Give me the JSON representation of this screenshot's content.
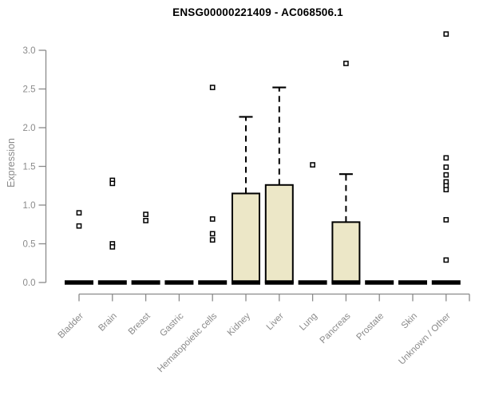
{
  "window": {
    "background": "#ffffff"
  },
  "chart_data": {
    "type": "box",
    "title": "ENSG00000221409 - AC068506.1",
    "xlabel": "",
    "ylabel": "Expression",
    "ylim": [
      0.0,
      3.0
    ],
    "yticks": [
      0.0,
      0.5,
      1.0,
      1.5,
      2.0,
      2.5,
      3.0
    ],
    "grid": false,
    "legend": "none",
    "categories": [
      "Bladder",
      "Brain",
      "Breast",
      "Gastric",
      "Hematopoietic cells",
      "Kidney",
      "Liver",
      "Lung",
      "Pancreas",
      "Prostate",
      "Skin",
      "Unknown / Other"
    ],
    "boxes": [
      {
        "label": "Bladder",
        "q1": 0,
        "median": 0,
        "q3": 0,
        "whisker_low": 0,
        "whisker_high": 0,
        "outliers": [
          0.9,
          0.73
        ]
      },
      {
        "label": "Brain",
        "q1": 0,
        "median": 0,
        "q3": 0,
        "whisker_low": 0,
        "whisker_high": 0,
        "outliers": [
          1.32,
          1.28,
          0.5,
          0.46
        ]
      },
      {
        "label": "Breast",
        "q1": 0,
        "median": 0,
        "q3": 0,
        "whisker_low": 0,
        "whisker_high": 0,
        "outliers": [
          0.88,
          0.8
        ]
      },
      {
        "label": "Gastric",
        "q1": 0,
        "median": 0,
        "q3": 0,
        "whisker_low": 0,
        "whisker_high": 0,
        "outliers": []
      },
      {
        "label": "Hematopoietic cells",
        "q1": 0,
        "median": 0,
        "q3": 0,
        "whisker_low": 0,
        "whisker_high": 0,
        "outliers": [
          2.52,
          0.82,
          0.63,
          0.55
        ]
      },
      {
        "label": "Kidney",
        "q1": 0,
        "median": 0,
        "q3": 1.15,
        "whisker_low": 0,
        "whisker_high": 2.14,
        "outliers": []
      },
      {
        "label": "Liver",
        "q1": 0,
        "median": 0,
        "q3": 1.26,
        "whisker_low": 0,
        "whisker_high": 2.52,
        "outliers": []
      },
      {
        "label": "Lung",
        "q1": 0,
        "median": 0,
        "q3": 0,
        "whisker_low": 0,
        "whisker_high": 0,
        "outliers": [
          1.52
        ]
      },
      {
        "label": "Pancreas",
        "q1": 0,
        "median": 0,
        "q3": 0.78,
        "whisker_low": 0,
        "whisker_high": 1.4,
        "outliers": [
          2.83
        ]
      },
      {
        "label": "Prostate",
        "q1": 0,
        "median": 0,
        "q3": 0,
        "whisker_low": 0,
        "whisker_high": 0,
        "outliers": []
      },
      {
        "label": "Skin",
        "q1": 0,
        "median": 0,
        "q3": 0,
        "whisker_low": 0,
        "whisker_high": 0,
        "outliers": []
      },
      {
        "label": "Unknown / Other",
        "q1": 0,
        "median": 0,
        "q3": 0,
        "whisker_low": 0,
        "whisker_high": 0,
        "outliers": [
          3.21,
          1.61,
          1.49,
          1.39,
          1.3,
          1.25,
          1.2,
          0.81,
          0.29
        ]
      }
    ],
    "colors": {
      "box_fill": "#ECE7C7",
      "box_stroke": "#000000",
      "median": "#000000",
      "whisker": "#000000",
      "outlier_stroke": "#000000",
      "axis": "#8a8a8a",
      "tick_text": "#8a8a8a",
      "title_text": "#000000"
    }
  }
}
